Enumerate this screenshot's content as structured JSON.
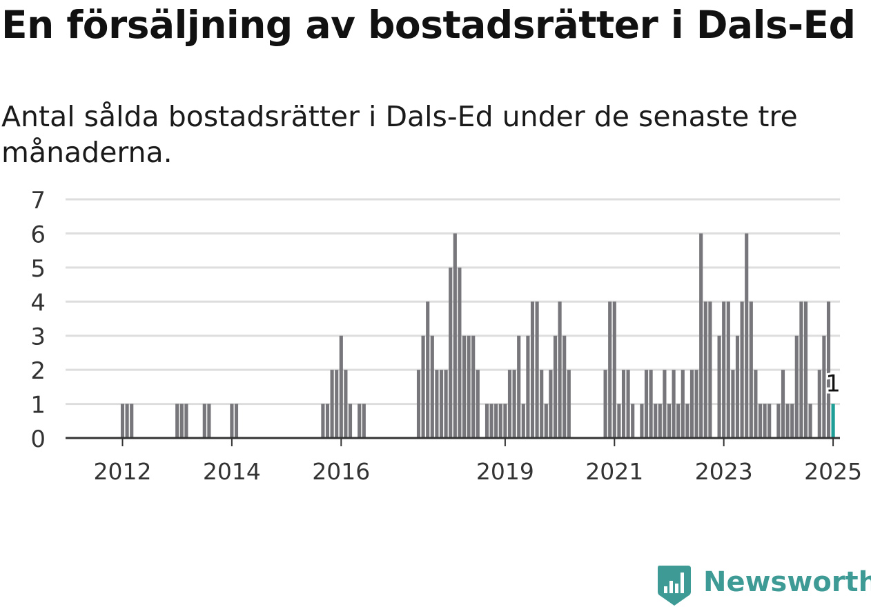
{
  "title": "En försäljning av bostadsrätter i Dals-Ed",
  "subtitle": "Antal sålda bostadsrätter i Dals-Ed under de senaste tre månaderna.",
  "brand": {
    "name": "Newsworthy",
    "color": "#3e9a95",
    "icon": "newsworthy-logo-icon"
  },
  "colors": {
    "bar": "#77767b",
    "highlight": "#1e9e96",
    "grid": "#dddddd",
    "axis": "#333333"
  },
  "chart_data": {
    "type": "bar",
    "title": "En försäljning av bostadsrätter i Dals-Ed",
    "subtitle": "Antal sålda bostadsrätter i Dals-Ed under de senaste tre månaderna.",
    "xlabel": "",
    "ylabel": "",
    "ylim": [
      0,
      7
    ],
    "yticks": [
      0,
      1,
      2,
      3,
      4,
      5,
      6,
      7
    ],
    "grid": true,
    "x_start": "2011-01",
    "x_end": "2025-02",
    "xtick_labels": [
      "2012",
      "2014",
      "2016",
      "2019",
      "2021",
      "2023",
      "2025"
    ],
    "highlight": {
      "x": "2025-01",
      "value": 1,
      "label": "1"
    },
    "series": [
      {
        "values": [
          {
            "x": "2012-01",
            "y": 1
          },
          {
            "x": "2012-02",
            "y": 1
          },
          {
            "x": "2012-03",
            "y": 1
          },
          {
            "x": "2013-01",
            "y": 1
          },
          {
            "x": "2013-02",
            "y": 1
          },
          {
            "x": "2013-03",
            "y": 1
          },
          {
            "x": "2013-07",
            "y": 1
          },
          {
            "x": "2013-08",
            "y": 1
          },
          {
            "x": "2014-01",
            "y": 1
          },
          {
            "x": "2014-02",
            "y": 1
          },
          {
            "x": "2015-09",
            "y": 1
          },
          {
            "x": "2015-10",
            "y": 1
          },
          {
            "x": "2015-11",
            "y": 2
          },
          {
            "x": "2015-12",
            "y": 2
          },
          {
            "x": "2016-01",
            "y": 3
          },
          {
            "x": "2016-02",
            "y": 2
          },
          {
            "x": "2016-03",
            "y": 1
          },
          {
            "x": "2016-05",
            "y": 1
          },
          {
            "x": "2016-06",
            "y": 1
          },
          {
            "x": "2017-06",
            "y": 2
          },
          {
            "x": "2017-07",
            "y": 3
          },
          {
            "x": "2017-08",
            "y": 4
          },
          {
            "x": "2017-09",
            "y": 3
          },
          {
            "x": "2017-10",
            "y": 2
          },
          {
            "x": "2017-11",
            "y": 2
          },
          {
            "x": "2017-12",
            "y": 2
          },
          {
            "x": "2018-01",
            "y": 5
          },
          {
            "x": "2018-02",
            "y": 6
          },
          {
            "x": "2018-03",
            "y": 5
          },
          {
            "x": "2018-04",
            "y": 3
          },
          {
            "x": "2018-05",
            "y": 3
          },
          {
            "x": "2018-06",
            "y": 3
          },
          {
            "x": "2018-07",
            "y": 2
          },
          {
            "x": "2018-09",
            "y": 1
          },
          {
            "x": "2018-10",
            "y": 1
          },
          {
            "x": "2018-11",
            "y": 1
          },
          {
            "x": "2018-12",
            "y": 1
          },
          {
            "x": "2019-01",
            "y": 1
          },
          {
            "x": "2019-02",
            "y": 2
          },
          {
            "x": "2019-03",
            "y": 2
          },
          {
            "x": "2019-04",
            "y": 3
          },
          {
            "x": "2019-05",
            "y": 1
          },
          {
            "x": "2019-06",
            "y": 3
          },
          {
            "x": "2019-07",
            "y": 4
          },
          {
            "x": "2019-08",
            "y": 4
          },
          {
            "x": "2019-09",
            "y": 2
          },
          {
            "x": "2019-10",
            "y": 1
          },
          {
            "x": "2019-11",
            "y": 2
          },
          {
            "x": "2019-12",
            "y": 3
          },
          {
            "x": "2020-01",
            "y": 4
          },
          {
            "x": "2020-02",
            "y": 3
          },
          {
            "x": "2020-03",
            "y": 2
          },
          {
            "x": "2020-11",
            "y": 2
          },
          {
            "x": "2020-12",
            "y": 4
          },
          {
            "x": "2021-01",
            "y": 4
          },
          {
            "x": "2021-02",
            "y": 1
          },
          {
            "x": "2021-03",
            "y": 2
          },
          {
            "x": "2021-04",
            "y": 2
          },
          {
            "x": "2021-05",
            "y": 1
          },
          {
            "x": "2021-07",
            "y": 1
          },
          {
            "x": "2021-08",
            "y": 2
          },
          {
            "x": "2021-09",
            "y": 2
          },
          {
            "x": "2021-10",
            "y": 1
          },
          {
            "x": "2021-11",
            "y": 1
          },
          {
            "x": "2021-12",
            "y": 2
          },
          {
            "x": "2022-01",
            "y": 1
          },
          {
            "x": "2022-02",
            "y": 2
          },
          {
            "x": "2022-03",
            "y": 1
          },
          {
            "x": "2022-04",
            "y": 2
          },
          {
            "x": "2022-05",
            "y": 1
          },
          {
            "x": "2022-06",
            "y": 2
          },
          {
            "x": "2022-07",
            "y": 2
          },
          {
            "x": "2022-08",
            "y": 6
          },
          {
            "x": "2022-09",
            "y": 4
          },
          {
            "x": "2022-10",
            "y": 4
          },
          {
            "x": "2022-12",
            "y": 3
          },
          {
            "x": "2023-01",
            "y": 4
          },
          {
            "x": "2023-02",
            "y": 4
          },
          {
            "x": "2023-03",
            "y": 2
          },
          {
            "x": "2023-04",
            "y": 3
          },
          {
            "x": "2023-05",
            "y": 4
          },
          {
            "x": "2023-06",
            "y": 6
          },
          {
            "x": "2023-07",
            "y": 4
          },
          {
            "x": "2023-08",
            "y": 2
          },
          {
            "x": "2023-09",
            "y": 1
          },
          {
            "x": "2023-10",
            "y": 1
          },
          {
            "x": "2023-11",
            "y": 1
          },
          {
            "x": "2024-01",
            "y": 1
          },
          {
            "x": "2024-02",
            "y": 2
          },
          {
            "x": "2024-03",
            "y": 1
          },
          {
            "x": "2024-04",
            "y": 1
          },
          {
            "x": "2024-05",
            "y": 3
          },
          {
            "x": "2024-06",
            "y": 4
          },
          {
            "x": "2024-07",
            "y": 4
          },
          {
            "x": "2024-08",
            "y": 1
          },
          {
            "x": "2024-10",
            "y": 2
          },
          {
            "x": "2024-11",
            "y": 3
          },
          {
            "x": "2024-12",
            "y": 4
          },
          {
            "x": "2025-01",
            "y": 1
          }
        ]
      }
    ]
  }
}
